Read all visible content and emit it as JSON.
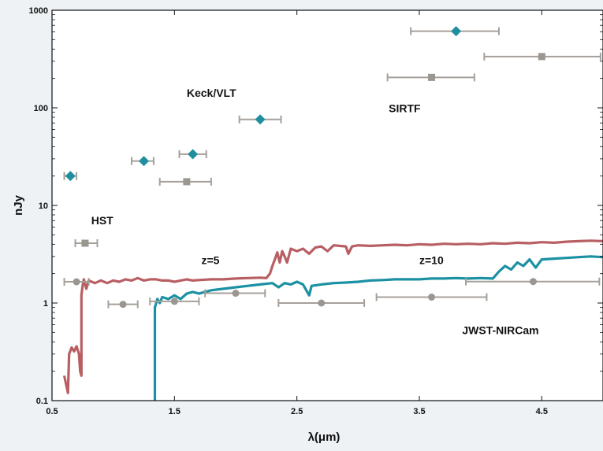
{
  "chart_data": {
    "type": "scatter",
    "xlabel": "λ(μm)",
    "ylabel": "nJy",
    "xlim": [
      0.5,
      5.0
    ],
    "ylim": [
      0.1,
      1000
    ],
    "yscale": "log",
    "grid": false,
    "xticks": [
      0.5,
      1.5,
      2.5,
      3.5,
      4.5
    ],
    "xtick_labels": [
      "0.5",
      "1.5",
      "2.5",
      "3.5",
      "4.5"
    ],
    "yticks": [
      0.1,
      1,
      10,
      100,
      1000
    ],
    "ytick_labels": [
      "0.1",
      "1",
      "10",
      "100",
      "1000"
    ],
    "annotations": [
      {
        "text": "Keck/VLT",
        "x": 1.6,
        "y": 130
      },
      {
        "text": "SIRTF",
        "x": 3.25,
        "y": 90
      },
      {
        "text": "HST",
        "x": 0.82,
        "y": 6.4
      },
      {
        "text": "z=5",
        "x": 1.72,
        "y": 2.5
      },
      {
        "text": "z=10",
        "x": 3.5,
        "y": 2.5
      },
      {
        "text": "JWST-NIRCam",
        "x": 3.85,
        "y": 0.48
      }
    ],
    "series": [
      {
        "type": "scatter",
        "marker": "diamond",
        "color": "#1f8fa0",
        "points": [
          {
            "x": 0.65,
            "y": 20,
            "xerr": [
              0.6,
              0.7
            ]
          },
          {
            "x": 1.25,
            "y": 28.5,
            "xerr": [
              1.15,
              1.33
            ]
          },
          {
            "x": 1.65,
            "y": 33.5,
            "xerr": [
              1.54,
              1.76
            ]
          },
          {
            "x": 2.2,
            "y": 76,
            "xerr": [
              2.03,
              2.37
            ]
          },
          {
            "x": 3.8,
            "y": 610,
            "xerr": [
              3.43,
              4.15
            ]
          }
        ]
      },
      {
        "type": "scatter",
        "marker": "square",
        "color": "#9c9691",
        "points": [
          {
            "x": 0.77,
            "y": 4.1,
            "xerr": [
              0.69,
              0.87
            ]
          },
          {
            "x": 1.6,
            "y": 17.5,
            "xerr": [
              1.38,
              1.8
            ]
          },
          {
            "x": 3.6,
            "y": 205,
            "xerr": [
              3.24,
              3.95
            ]
          },
          {
            "x": 4.5,
            "y": 335,
            "xerr": [
              4.03,
              4.98
            ]
          }
        ]
      },
      {
        "type": "scatter",
        "marker": "circle",
        "color": "#9c9691",
        "points": [
          {
            "x": 0.7,
            "y": 1.65,
            "xerr": [
              0.6,
              0.8
            ]
          },
          {
            "x": 1.08,
            "y": 0.97,
            "xerr": [
              0.96,
              1.2
            ]
          },
          {
            "x": 1.5,
            "y": 1.04,
            "xerr": [
              1.3,
              1.7
            ]
          },
          {
            "x": 2.0,
            "y": 1.26,
            "xerr": [
              1.75,
              2.24
            ]
          },
          {
            "x": 2.7,
            "y": 1.0,
            "xerr": [
              2.35,
              3.05
            ]
          },
          {
            "x": 3.6,
            "y": 1.15,
            "xerr": [
              3.15,
              4.05
            ]
          },
          {
            "x": 4.43,
            "y": 1.66,
            "xerr": [
              3.88,
              4.97
            ]
          }
        ]
      },
      {
        "type": "line",
        "color": "#b85f64",
        "note_label": "z=5",
        "points": [
          [
            0.6,
            0.18
          ],
          [
            0.63,
            0.12
          ],
          [
            0.64,
            0.3
          ],
          [
            0.66,
            0.35
          ],
          [
            0.68,
            0.32
          ],
          [
            0.7,
            0.36
          ],
          [
            0.72,
            0.3
          ],
          [
            0.73,
            0.2
          ],
          [
            0.74,
            0.18
          ],
          [
            0.74,
            1.2
          ],
          [
            0.75,
            1.5
          ],
          [
            0.76,
            1.75
          ],
          [
            0.78,
            1.4
          ],
          [
            0.8,
            1.7
          ],
          [
            0.85,
            1.6
          ],
          [
            0.9,
            1.7
          ],
          [
            0.95,
            1.6
          ],
          [
            1.0,
            1.7
          ],
          [
            1.05,
            1.65
          ],
          [
            1.1,
            1.75
          ],
          [
            1.15,
            1.7
          ],
          [
            1.2,
            1.8
          ],
          [
            1.25,
            1.7
          ],
          [
            1.3,
            1.75
          ],
          [
            1.35,
            1.75
          ],
          [
            1.4,
            1.7
          ],
          [
            1.45,
            1.7
          ],
          [
            1.5,
            1.65
          ],
          [
            1.55,
            1.7
          ],
          [
            1.6,
            1.75
          ],
          [
            1.65,
            1.7
          ],
          [
            1.7,
            1.72
          ],
          [
            1.8,
            1.75
          ],
          [
            1.9,
            1.75
          ],
          [
            2.0,
            1.78
          ],
          [
            2.1,
            1.8
          ],
          [
            2.2,
            1.82
          ],
          [
            2.25,
            1.8
          ],
          [
            2.28,
            2.0
          ],
          [
            2.3,
            2.4
          ],
          [
            2.32,
            2.8
          ],
          [
            2.34,
            3.3
          ],
          [
            2.36,
            2.6
          ],
          [
            2.38,
            3.4
          ],
          [
            2.4,
            3.0
          ],
          [
            2.42,
            2.6
          ],
          [
            2.45,
            3.6
          ],
          [
            2.5,
            3.4
          ],
          [
            2.55,
            3.6
          ],
          [
            2.6,
            3.2
          ],
          [
            2.65,
            3.7
          ],
          [
            2.7,
            3.8
          ],
          [
            2.75,
            3.4
          ],
          [
            2.8,
            3.9
          ],
          [
            2.9,
            3.8
          ],
          [
            2.92,
            3.2
          ],
          [
            2.95,
            3.8
          ],
          [
            3.0,
            3.9
          ],
          [
            3.1,
            3.85
          ],
          [
            3.2,
            3.9
          ],
          [
            3.3,
            3.95
          ],
          [
            3.4,
            3.9
          ],
          [
            3.5,
            4.0
          ],
          [
            3.6,
            3.95
          ],
          [
            3.7,
            4.05
          ],
          [
            3.8,
            4.0
          ],
          [
            3.9,
            4.05
          ],
          [
            4.0,
            4.0
          ],
          [
            4.1,
            4.1
          ],
          [
            4.2,
            4.05
          ],
          [
            4.3,
            4.15
          ],
          [
            4.4,
            4.1
          ],
          [
            4.5,
            4.2
          ],
          [
            4.6,
            4.15
          ],
          [
            4.7,
            4.25
          ],
          [
            4.8,
            4.3
          ],
          [
            4.9,
            4.35
          ],
          [
            5.0,
            4.3
          ]
        ]
      },
      {
        "type": "line",
        "color": "#1b91a3",
        "note_label": "z=10",
        "points": [
          [
            1.34,
            0.1
          ],
          [
            1.34,
            0.9
          ],
          [
            1.36,
            1.1
          ],
          [
            1.38,
            1.0
          ],
          [
            1.4,
            1.15
          ],
          [
            1.45,
            1.1
          ],
          [
            1.5,
            1.2
          ],
          [
            1.55,
            1.1
          ],
          [
            1.6,
            1.25
          ],
          [
            1.65,
            1.3
          ],
          [
            1.7,
            1.25
          ],
          [
            1.8,
            1.35
          ],
          [
            1.9,
            1.4
          ],
          [
            2.0,
            1.45
          ],
          [
            2.1,
            1.5
          ],
          [
            2.2,
            1.55
          ],
          [
            2.3,
            1.6
          ],
          [
            2.35,
            1.45
          ],
          [
            2.4,
            1.6
          ],
          [
            2.45,
            1.55
          ],
          [
            2.5,
            1.65
          ],
          [
            2.55,
            1.55
          ],
          [
            2.6,
            1.2
          ],
          [
            2.62,
            1.5
          ],
          [
            2.7,
            1.55
          ],
          [
            2.8,
            1.6
          ],
          [
            2.9,
            1.62
          ],
          [
            3.0,
            1.65
          ],
          [
            3.1,
            1.7
          ],
          [
            3.2,
            1.72
          ],
          [
            3.3,
            1.75
          ],
          [
            3.4,
            1.75
          ],
          [
            3.5,
            1.75
          ],
          [
            3.6,
            1.78
          ],
          [
            3.7,
            1.78
          ],
          [
            3.8,
            1.8
          ],
          [
            3.9,
            1.78
          ],
          [
            4.0,
            1.8
          ],
          [
            4.1,
            1.78
          ],
          [
            4.15,
            2.1
          ],
          [
            4.2,
            2.4
          ],
          [
            4.25,
            2.2
          ],
          [
            4.3,
            2.6
          ],
          [
            4.35,
            2.4
          ],
          [
            4.4,
            2.8
          ],
          [
            4.45,
            2.3
          ],
          [
            4.5,
            2.8
          ],
          [
            4.6,
            2.85
          ],
          [
            4.7,
            2.9
          ],
          [
            4.8,
            2.95
          ],
          [
            4.9,
            3.0
          ],
          [
            5.0,
            2.95
          ]
        ]
      }
    ]
  }
}
